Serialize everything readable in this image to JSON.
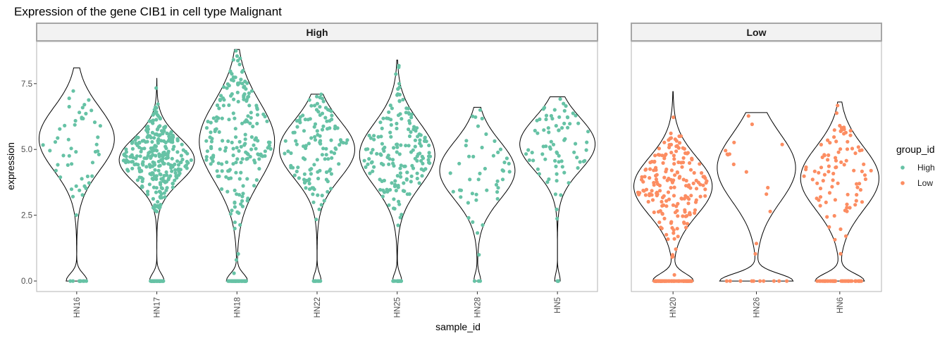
{
  "chart_data": {
    "type": "violin",
    "title": "Expression of the gene CIB1 in cell type Malignant",
    "xlabel": "sample_id",
    "ylabel": "expression",
    "ylim": [
      -0.4,
      9.1
    ],
    "y_ticks": [
      0,
      2.5,
      5,
      7.5
    ],
    "y_tick_labels": [
      "0.0",
      "2.5",
      "5.0",
      "7.5"
    ],
    "legend": {
      "title": "group_id",
      "position": "right",
      "entries": [
        {
          "label": "High",
          "color": "#66C2A5"
        },
        {
          "label": "Low",
          "color": "#FC8D62"
        }
      ]
    },
    "panels": [
      {
        "strip": "High",
        "color": "#66C2A5",
        "samples": [
          {
            "name": "HN16",
            "n": 60,
            "zeros": 10,
            "max": 8.1,
            "center": 5.4,
            "spread": 1.2
          },
          {
            "name": "HN17",
            "n": 330,
            "zeros": 40,
            "max": 7.7,
            "center": 4.6,
            "spread": 0.85
          },
          {
            "name": "HN18",
            "n": 240,
            "zeros": 40,
            "max": 8.8,
            "center": 5.3,
            "spread": 1.5
          },
          {
            "name": "HN22",
            "n": 140,
            "zeros": 10,
            "max": 7.1,
            "center": 5.0,
            "spread": 1.1
          },
          {
            "name": "HN25",
            "n": 190,
            "zeros": 15,
            "max": 8.4,
            "center": 4.8,
            "spread": 1.2
          },
          {
            "name": "HN28",
            "n": 50,
            "zeros": 3,
            "max": 6.6,
            "center": 4.2,
            "spread": 1.1
          },
          {
            "name": "HN5",
            "n": 80,
            "zeros": 4,
            "max": 7.0,
            "center": 5.2,
            "spread": 1.0
          }
        ]
      },
      {
        "strip": "Low",
        "color": "#FC8D62",
        "samples": [
          {
            "name": "HN20",
            "n": 260,
            "zeros": 70,
            "max": 7.2,
            "center": 3.6,
            "spread": 1.1
          },
          {
            "name": "HN26",
            "n": 25,
            "zeros": 10,
            "max": 6.4,
            "center": 4.3,
            "spread": 1.3
          },
          {
            "name": "HN6",
            "n": 130,
            "zeros": 40,
            "max": 6.8,
            "center": 3.9,
            "spread": 1.2
          }
        ]
      }
    ]
  }
}
